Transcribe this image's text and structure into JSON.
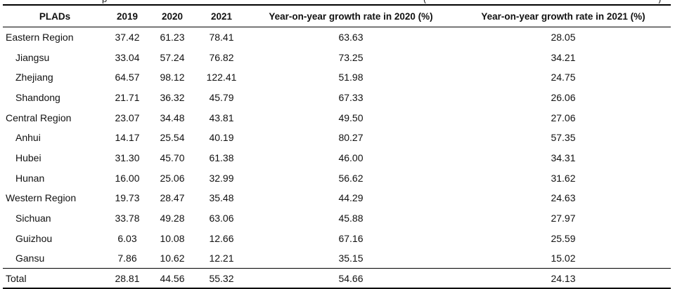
{
  "clipped_caption_fragments": [
    "p",
    "(",
    ")"
  ],
  "table": {
    "columns": [
      "PLADs",
      "2019",
      "2020",
      "2021",
      "Year-on-year growth rate in 2020 (%)",
      "Year-on-year growth rate in 2021 (%)"
    ],
    "rows": [
      {
        "name": "Eastern Region",
        "level": "region",
        "y2019": "37.42",
        "y2020": "61.23",
        "y2021": "78.41",
        "g2020": "63.63",
        "g2021": "28.05"
      },
      {
        "name": "Jiangsu",
        "level": "province",
        "y2019": "33.04",
        "y2020": "57.24",
        "y2021": "76.82",
        "g2020": "73.25",
        "g2021": "34.21"
      },
      {
        "name": "Zhejiang",
        "level": "province",
        "y2019": "64.57",
        "y2020": "98.12",
        "y2021": "122.41",
        "g2020": "51.98",
        "g2021": "24.75"
      },
      {
        "name": "Shandong",
        "level": "province",
        "y2019": "21.71",
        "y2020": "36.32",
        "y2021": "45.79",
        "g2020": "67.33",
        "g2021": "26.06"
      },
      {
        "name": "Central Region",
        "level": "region",
        "y2019": "23.07",
        "y2020": "34.48",
        "y2021": "43.81",
        "g2020": "49.50",
        "g2021": "27.06"
      },
      {
        "name": "Anhui",
        "level": "province",
        "y2019": "14.17",
        "y2020": "25.54",
        "y2021": "40.19",
        "g2020": "80.27",
        "g2021": "57.35"
      },
      {
        "name": "Hubei",
        "level": "province",
        "y2019": "31.30",
        "y2020": "45.70",
        "y2021": "61.38",
        "g2020": "46.00",
        "g2021": "34.31"
      },
      {
        "name": "Hunan",
        "level": "province",
        "y2019": "16.00",
        "y2020": "25.06",
        "y2021": "32.99",
        "g2020": "56.62",
        "g2021": "31.62"
      },
      {
        "name": "Western Region",
        "level": "region",
        "y2019": "19.73",
        "y2020": "28.47",
        "y2021": "35.48",
        "g2020": "44.29",
        "g2021": "24.63"
      },
      {
        "name": "Sichuan",
        "level": "province",
        "y2019": "33.78",
        "y2020": "49.28",
        "y2021": "63.06",
        "g2020": "45.88",
        "g2021": "27.97"
      },
      {
        "name": "Guizhou",
        "level": "province",
        "y2019": "6.03",
        "y2020": "10.08",
        "y2021": "12.66",
        "g2020": "67.16",
        "g2021": "25.59"
      },
      {
        "name": "Gansu",
        "level": "province",
        "y2019": "7.86",
        "y2020": "10.62",
        "y2021": "12.21",
        "g2020": "35.15",
        "g2021": "15.02"
      },
      {
        "name": "Total",
        "level": "total",
        "y2019": "28.81",
        "y2020": "44.56",
        "y2021": "55.32",
        "g2020": "54.66",
        "g2021": "24.13"
      }
    ]
  }
}
